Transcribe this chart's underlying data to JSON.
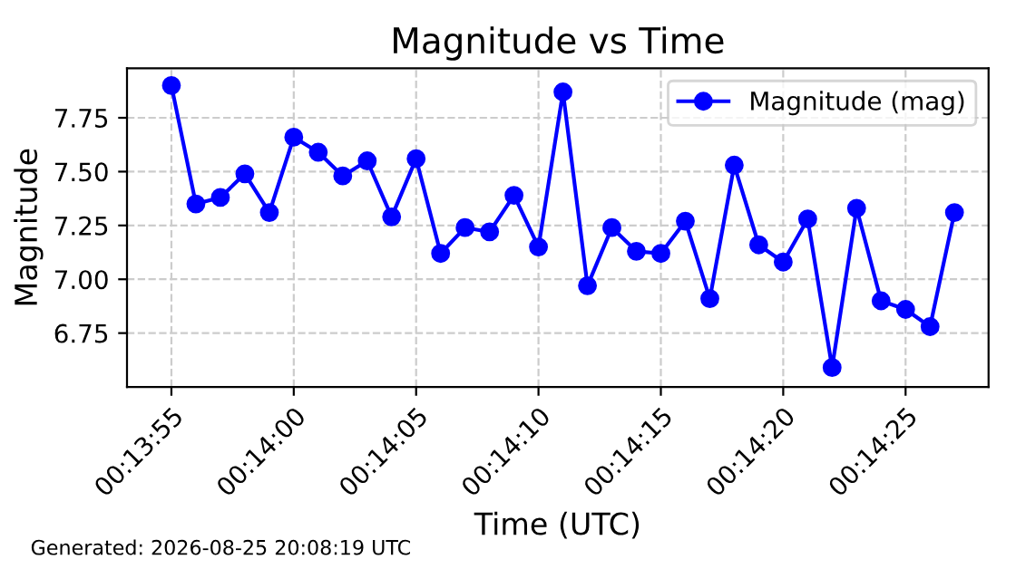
{
  "chart_data": {
    "type": "line",
    "title": "Magnitude vs Time",
    "xlabel": "Time (UTC)",
    "ylabel": "Magnitude",
    "annotations": [
      "Generated: 2026-08-25 20:08:19 UTC"
    ],
    "x": [
      0.231944,
      0.232222,
      0.2325,
      0.232778,
      0.233056,
      0.233333,
      0.233611,
      0.233889,
      0.234167,
      0.234444,
      0.234722,
      0.235,
      0.235278,
      0.235556,
      0.235833,
      0.236111,
      0.236389,
      0.236667,
      0.236944,
      0.237222,
      0.2375,
      0.237778,
      0.238056,
      0.238333,
      0.238611,
      0.238889,
      0.239167,
      0.239444,
      0.239722,
      0.24,
      0.240278,
      0.240556,
      0.240833
    ],
    "series": [
      {
        "name": "Magnitude (mag)",
        "color": "#0000ff",
        "values": [
          7.9,
          7.35,
          7.38,
          7.49,
          7.31,
          7.66,
          7.59,
          7.48,
          7.55,
          7.29,
          7.56,
          7.12,
          7.24,
          7.22,
          7.39,
          7.15,
          7.87,
          6.97,
          7.24,
          7.13,
          7.12,
          7.27,
          6.91,
          7.53,
          7.16,
          7.08,
          7.28,
          6.59,
          7.33,
          6.9,
          6.86,
          6.78,
          7.31
        ]
      }
    ],
    "xlim": [
      0.23144,
      0.24122
    ],
    "ylim": [
      6.5,
      7.98
    ],
    "xticks": [
      {
        "value": 0.231944,
        "label": "00:13:55"
      },
      {
        "value": 0.233333,
        "label": "00:14:00"
      },
      {
        "value": 0.234722,
        "label": "00:14:05"
      },
      {
        "value": 0.236111,
        "label": "00:14:10"
      },
      {
        "value": 0.2375,
        "label": "00:14:15"
      },
      {
        "value": 0.238889,
        "label": "00:14:20"
      },
      {
        "value": 0.240278,
        "label": "00:14:25"
      }
    ],
    "yticks": [
      {
        "value": 6.75,
        "label": "6.75"
      },
      {
        "value": 7.0,
        "label": "7.00"
      },
      {
        "value": 7.25,
        "label": "7.25"
      },
      {
        "value": 7.5,
        "label": "7.50"
      },
      {
        "value": 7.75,
        "label": "7.75"
      }
    ],
    "grid": true,
    "legend": "top right",
    "marker": "circle",
    "line_style": "solid"
  }
}
